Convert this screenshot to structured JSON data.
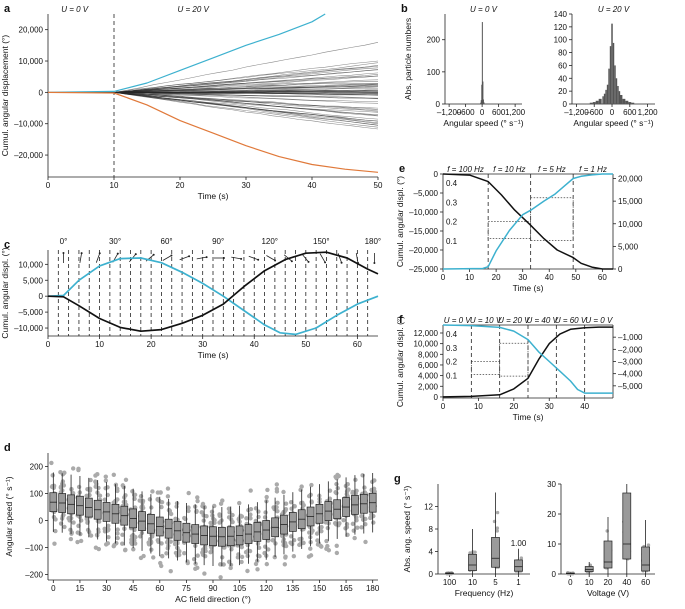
{
  "panels": [
    {
      "id": "a",
      "label": "a",
      "type": "line",
      "annotations": [
        "U = 0 V",
        "U = 20 V"
      ],
      "xlabel": "Time (s)",
      "ylabel": "Cumul. angular displacement (°)",
      "xlim": [
        0,
        50
      ],
      "ylim": [
        -27000,
        25000
      ],
      "xticks": [
        0,
        10,
        20,
        30,
        40,
        50
      ],
      "yticks": [
        -20000,
        -10000,
        0,
        10000,
        20000
      ],
      "ytick_labels": [
        "–20,000",
        "–10,000",
        "0",
        "10,000",
        "20,000"
      ],
      "vline": 10,
      "highlight_series": [
        {
          "color": "#3db1cf",
          "x": [
            0,
            10,
            15,
            20,
            25,
            30,
            35,
            40,
            42
          ],
          "y": [
            0,
            300,
            3000,
            7000,
            11000,
            15000,
            18500,
            22500,
            25000
          ]
        },
        {
          "color": "#e0793a",
          "x": [
            0,
            10,
            15,
            20,
            25,
            30,
            35,
            40,
            45,
            50
          ],
          "y": [
            0,
            -200,
            -4000,
            -9000,
            -13000,
            -17000,
            -20500,
            -23000,
            -24500,
            -25500
          ]
        }
      ],
      "fan_range": {
        "spread_at_50": 19000,
        "count": 60
      }
    },
    {
      "id": "b1",
      "label": "b",
      "type": "bar",
      "annotations": [
        "U = 0 V"
      ],
      "xlabel": "Angular speed (° s⁻¹)",
      "ylabel": "Abs. particle numbers",
      "xlim": [
        -1350,
        1450
      ],
      "ylim": [
        0,
        280
      ],
      "xticks": [
        -1200,
        -600,
        0,
        600,
        1200
      ],
      "xtick_labels": [
        "–1,200",
        "–600",
        "0",
        "600",
        "1,200"
      ],
      "yticks": [
        0,
        100,
        200
      ],
      "bins": [
        -60,
        -40,
        -20,
        0,
        20,
        40,
        60
      ],
      "counts": [
        4,
        12,
        60,
        255,
        70,
        14,
        5
      ]
    },
    {
      "id": "b2",
      "label": "",
      "type": "bar",
      "annotations": [
        "U = 20 V"
      ],
      "xlabel": "Angular speed (° s⁻¹)",
      "ylabel": "",
      "xlim": [
        -1350,
        1450
      ],
      "ylim": [
        0,
        140
      ],
      "xticks": [
        -1200,
        -600,
        0,
        600,
        1200
      ],
      "xtick_labels": [
        "–1,200",
        "–600",
        "0",
        "600",
        "1,200"
      ],
      "yticks": [
        0,
        20,
        40,
        60,
        80,
        100,
        120,
        140
      ],
      "bins": [
        -700,
        -600,
        -500,
        -400,
        -300,
        -250,
        -200,
        -150,
        -100,
        -50,
        0,
        50,
        100,
        150,
        200,
        250,
        300,
        400,
        500,
        600,
        700
      ],
      "counts": [
        2,
        3,
        5,
        8,
        12,
        16,
        22,
        30,
        55,
        90,
        125,
        95,
        60,
        40,
        28,
        20,
        14,
        8,
        5,
        3,
        2
      ]
    },
    {
      "id": "c",
      "label": "c",
      "type": "line",
      "xlabel": "Time (s)",
      "ylabel": "Cumul. angular displ. (°)",
      "xlim": [
        0,
        64
      ],
      "ylim": [
        -12500,
        14500
      ],
      "xticks": [
        0,
        10,
        20,
        30,
        40,
        50,
        60
      ],
      "yticks": [
        -10000,
        -5000,
        0,
        5000,
        10000
      ],
      "ytick_labels": [
        "–10,000",
        "–5,000",
        "0",
        "5,000",
        "10,000"
      ],
      "field_directions": [
        "0°",
        "30°",
        "60°",
        "90°",
        "120°",
        "150°",
        "180°"
      ],
      "series": [
        {
          "color": "#3db1cf",
          "x": [
            0,
            3,
            6,
            10,
            14,
            18,
            22,
            26,
            30,
            34,
            38,
            42,
            45,
            48,
            52,
            56,
            60,
            64
          ],
          "y": [
            0,
            200,
            5000,
            9500,
            11800,
            12000,
            10500,
            7500,
            4000,
            0,
            -4500,
            -9000,
            -11500,
            -12000,
            -10000,
            -6000,
            -2500,
            0
          ]
        },
        {
          "color": "#111111",
          "x": [
            0,
            3,
            6,
            10,
            14,
            18,
            22,
            26,
            30,
            34,
            38,
            42,
            46,
            50,
            54,
            58,
            62,
            64
          ],
          "y": [
            0,
            -200,
            -3000,
            -7000,
            -9800,
            -11000,
            -10500,
            -8500,
            -6000,
            -2500,
            3000,
            8000,
            11500,
            13500,
            13800,
            12000,
            8500,
            7000
          ]
        }
      ]
    },
    {
      "id": "d",
      "label": "d",
      "type": "box",
      "xlabel": "AC field direction (°)",
      "ylabel": "Angular speed (° s⁻¹)",
      "xlim": [
        -3,
        183
      ],
      "ylim": [
        -220,
        250
      ],
      "xticks": [
        0,
        15,
        30,
        45,
        60,
        75,
        90,
        105,
        120,
        135,
        150,
        165,
        180
      ],
      "yticks": [
        -200,
        -100,
        0,
        100,
        200
      ],
      "ytick_labels": [
        "–200",
        "–100",
        "0",
        "100",
        "200"
      ],
      "positions": [
        0,
        5,
        10,
        15,
        20,
        25,
        30,
        35,
        40,
        45,
        50,
        55,
        60,
        65,
        70,
        75,
        80,
        85,
        90,
        95,
        100,
        105,
        110,
        115,
        120,
        125,
        130,
        135,
        140,
        145,
        150,
        155,
        160,
        165,
        170,
        175,
        180
      ],
      "medians": [
        68,
        65,
        60,
        55,
        48,
        40,
        32,
        25,
        18,
        8,
        -2,
        -12,
        -22,
        -30,
        -38,
        -45,
        -50,
        -55,
        -58,
        -60,
        -58,
        -55,
        -50,
        -42,
        -35,
        -25,
        -15,
        -5,
        5,
        15,
        25,
        35,
        42,
        50,
        58,
        62,
        66
      ]
    },
    {
      "id": "e",
      "label": "e",
      "type": "line",
      "annotations": [
        "f = 100 Hz",
        "f = 10 Hz",
        "f = 5 Hz",
        "f = 1 Hz"
      ],
      "xlabel": "Time (s)",
      "ylabel": "Cumul. angular displ. (°)",
      "xlim": [
        0,
        64
      ],
      "ylim": [
        -25000,
        0
      ],
      "xticks": [
        0,
        10,
        20,
        30,
        40,
        50,
        60
      ],
      "yticks": [
        -25000,
        -20000,
        -15000,
        -10000,
        -5000,
        0
      ],
      "ytick_labels": [
        "–25,000",
        "–20,000",
        "–15,000",
        "–10,000",
        "–5,000",
        "0"
      ],
      "y2lim": [
        0,
        21000
      ],
      "y2ticks": [
        0,
        5000,
        10000,
        15000,
        20000
      ],
      "y2tick_labels": [
        "0",
        "5,000",
        "10,000",
        "15,000",
        "20,000"
      ],
      "inner_ticks": [
        "0.4",
        "0.3",
        "0.2",
        "0.1"
      ],
      "vlines": [
        17,
        33,
        49
      ],
      "series": [
        {
          "color": "#111111",
          "axis": "left",
          "x": [
            0,
            10,
            17,
            22,
            27,
            33,
            38,
            43,
            49,
            52,
            56,
            60,
            64
          ],
          "y": [
            0,
            -300,
            -2000,
            -5500,
            -9500,
            -13500,
            -17000,
            -20000,
            -22000,
            -23500,
            -24500,
            -25000,
            -25000
          ]
        },
        {
          "color": "#3db1cf",
          "axis": "right",
          "x": [
            0,
            15,
            17,
            20,
            25,
            30,
            33,
            38,
            42,
            46,
            49,
            52,
            56,
            60,
            64
          ],
          "y": [
            0,
            100,
            500,
            4000,
            8500,
            12000,
            13000,
            15000,
            16500,
            18500,
            20000,
            20500,
            20800,
            21000,
            21000
          ]
        }
      ]
    },
    {
      "id": "f",
      "label": "f",
      "type": "line",
      "annotations": [
        "U = 0 V",
        "U = 10 V",
        "U = 20 V",
        "U = 40 V",
        "U = 60 V",
        "U = 0 V"
      ],
      "xlabel": "Time (s)",
      "ylabel": "Cumul. angular displ. (°)",
      "xlim": [
        0,
        48
      ],
      "ylim": [
        -200,
        13500
      ],
      "xticks": [
        0,
        10,
        20,
        30,
        40
      ],
      "yticks": [
        0,
        2000,
        4000,
        6000,
        8000,
        10000,
        12000
      ],
      "ytick_labels": [
        "0",
        "2,000",
        "4,000",
        "6,000",
        "8,000",
        "10,000",
        "12,000"
      ],
      "y2lim": [
        -6000,
        0
      ],
      "y2ticks": [
        -1000,
        -2000,
        -3000,
        -4000,
        -5000
      ],
      "y2tick_labels": [
        "–1,000",
        "–2,000",
        "–3,000",
        "–4,000",
        "–5,000"
      ],
      "inner_ticks": [
        "0.4",
        "0.3",
        "0.2",
        "0.1"
      ],
      "vlines": [
        8,
        16,
        24,
        32,
        40
      ],
      "series": [
        {
          "color": "#111111",
          "axis": "left",
          "x": [
            0,
            8,
            16,
            20,
            24,
            27,
            30,
            33,
            36,
            40,
            44,
            48
          ],
          "y": [
            0,
            100,
            400,
            1500,
            3500,
            7000,
            10000,
            11800,
            12700,
            13000,
            13100,
            13100
          ]
        },
        {
          "color": "#3db1cf",
          "axis": "right",
          "x": [
            0,
            8,
            16,
            20,
            24,
            27,
            30,
            33,
            36,
            38,
            40,
            44,
            48
          ],
          "y": [
            0,
            -50,
            -200,
            -500,
            -1200,
            -2200,
            -3000,
            -3800,
            -4600,
            -5300,
            -5600,
            -5600,
            -5600
          ]
        }
      ]
    },
    {
      "id": "g1",
      "label": "g",
      "type": "box",
      "annotations": [
        "1.00"
      ],
      "xlabel": "Frequency (Hz)",
      "ylabel": "Abs. ang. speed (° s⁻¹)",
      "ylim": [
        0,
        16
      ],
      "yticks": [
        0,
        4,
        8,
        12
      ],
      "categories": [
        "100",
        "10",
        "5",
        "1"
      ],
      "medians": [
        0.1,
        1.6,
        2.8,
        1.3
      ],
      "q1": [
        0.05,
        0.6,
        1.2,
        0.5
      ],
      "q3": [
        0.2,
        3.5,
        6.5,
        2.5
      ],
      "whisker_low": [
        0,
        0,
        0,
        0
      ],
      "whisker_high": [
        0.3,
        8,
        14.5,
        4.5
      ]
    },
    {
      "id": "g2",
      "label": "",
      "type": "box",
      "xlabel": "Voltage (V)",
      "ylabel": "",
      "ylim": [
        0,
        30
      ],
      "yticks": [
        0,
        10,
        20,
        30
      ],
      "categories": [
        "0",
        "10",
        "20",
        "40",
        "60"
      ],
      "medians": [
        0.2,
        1.5,
        4,
        10,
        3
      ],
      "q1": [
        0.1,
        0.8,
        2,
        5,
        1
      ],
      "q3": [
        0.3,
        2.5,
        11,
        27,
        9
      ],
      "whisker_low": [
        0,
        0,
        0,
        0,
        0
      ],
      "whisker_high": [
        0.5,
        4,
        19,
        30,
        18
      ]
    }
  ],
  "colors": {
    "cyan": "#3db1cf",
    "orange": "#e0793a",
    "black": "#111111",
    "box": "#9a9a9a",
    "median": "#e07a85",
    "grid": "#999999"
  }
}
